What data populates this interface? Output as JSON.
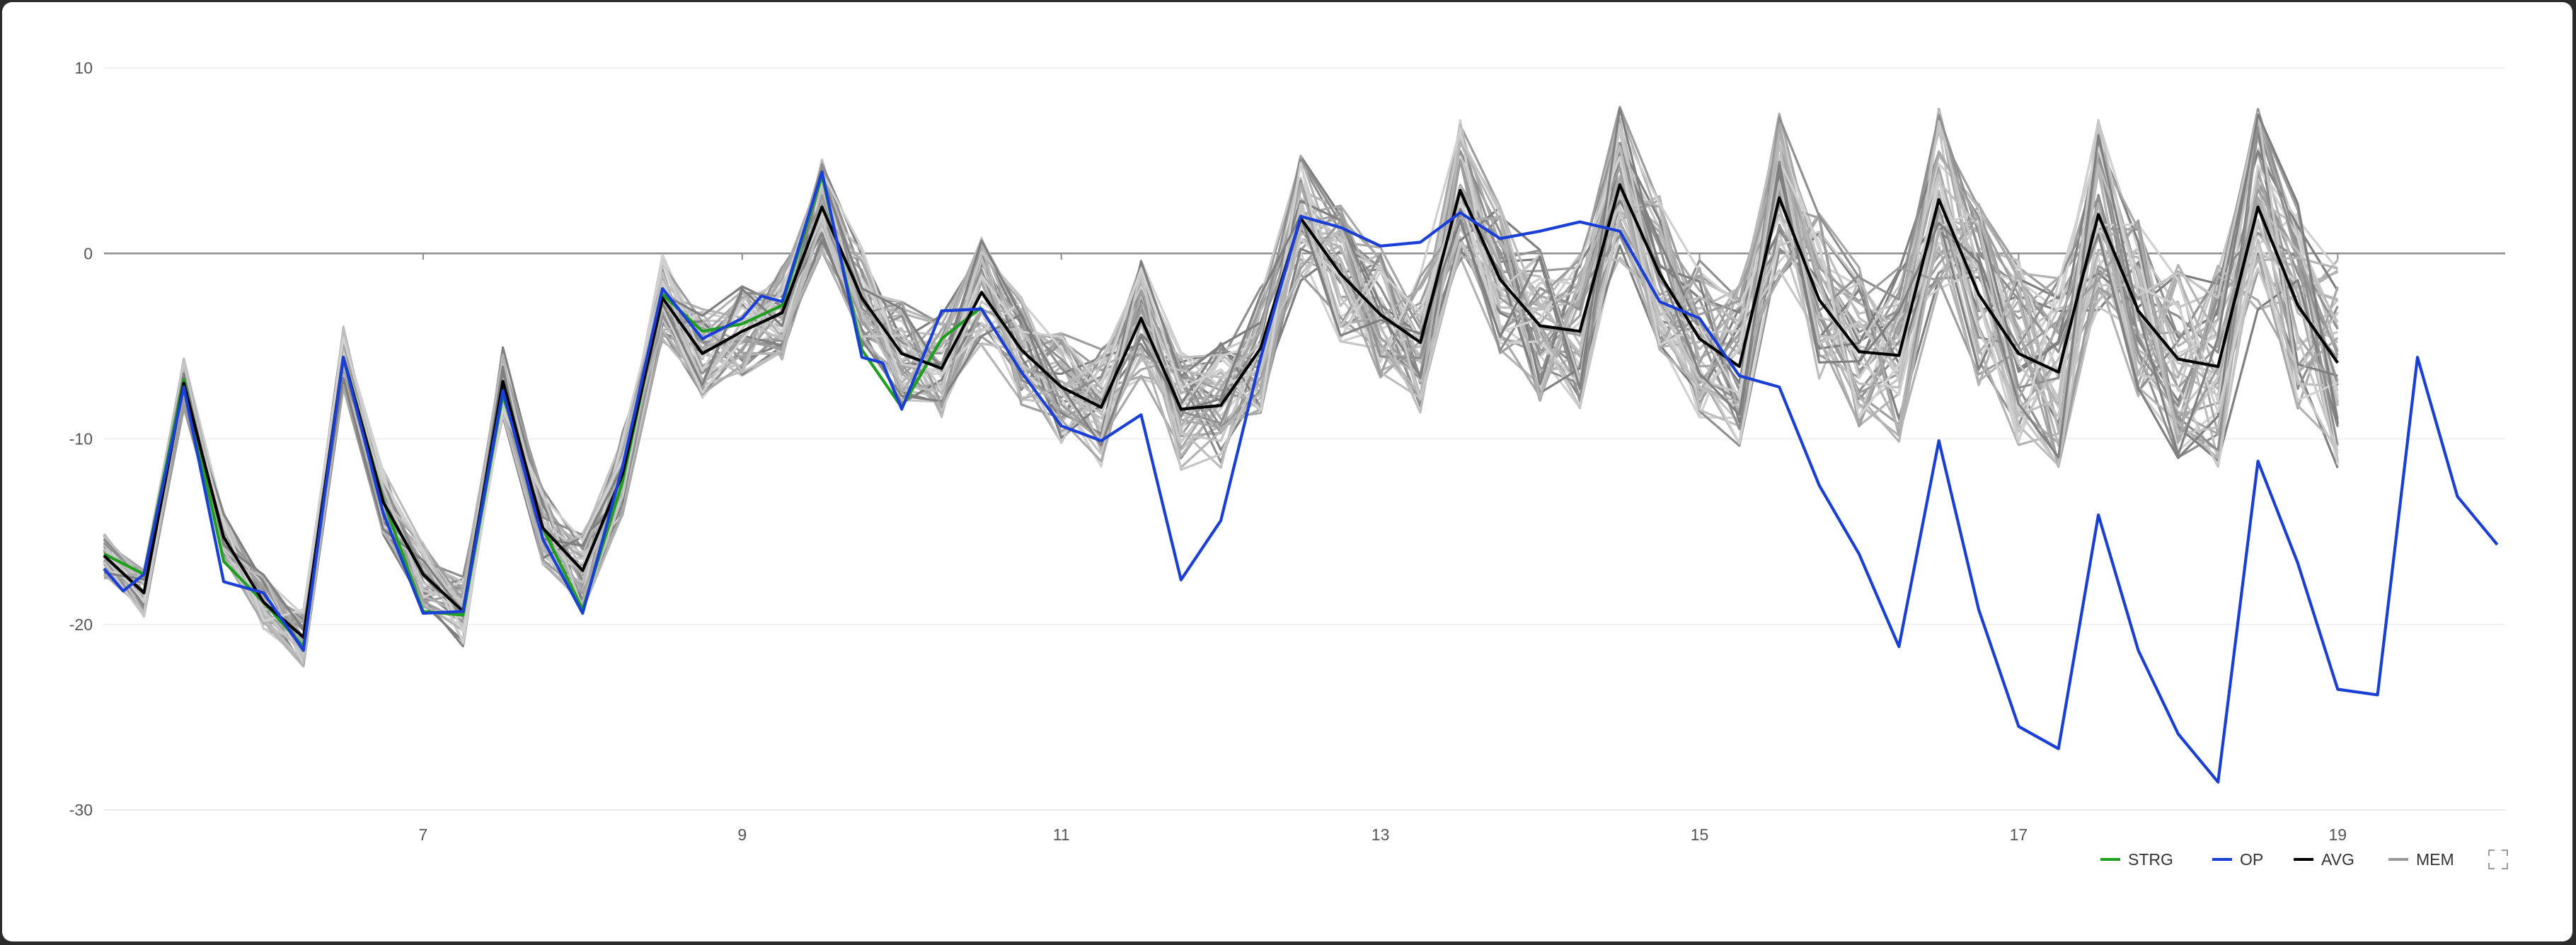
{
  "chart_data": {
    "type": "line",
    "title": "",
    "xlabel": "",
    "ylabel": "",
    "xlim": [
      5.0,
      20.05
    ],
    "ylim": [
      -30,
      10
    ],
    "x_ticks": [
      7,
      9,
      11,
      13,
      15,
      17,
      19
    ],
    "y_ticks": [
      10,
      0,
      -10,
      -20,
      -30
    ],
    "grid": "horizontal",
    "zero_line": true,
    "legend_position": "bottom-right",
    "colors": {
      "STRG": "#1f9e1f",
      "OP": "#1a3fd6",
      "AVG": "#000000",
      "MEM": "#999999"
    },
    "legend": [
      "STRG",
      "OP",
      "AVG",
      "MEM"
    ],
    "legend_icons": [
      "line-swatch",
      "line-swatch",
      "line-swatch",
      "line-swatch"
    ],
    "fullscreen_icon": "expand-icon",
    "series": [
      {
        "name": "STRG",
        "x": [
          5.0,
          5.25,
          5.5,
          5.75,
          6.0,
          6.25,
          6.5,
          6.75,
          7.0,
          7.25,
          7.5,
          7.75,
          8.0,
          8.25,
          8.5,
          8.75,
          9.0,
          9.25,
          9.5,
          9.75,
          10.0,
          10.25,
          10.5
        ],
        "y": [
          -16.2,
          -17.3,
          -6.8,
          -16.6,
          -18.8,
          -21.2,
          -5.6,
          -13.3,
          -19.3,
          -19.5,
          -7.6,
          -14.8,
          -19.2,
          -12.3,
          -2.2,
          -4.2,
          -3.8,
          -2.8,
          4.2,
          -5.2,
          -8.3,
          -4.6,
          -2.9
        ]
      },
      {
        "name": "OP",
        "x": [
          5.0,
          5.12,
          5.25,
          5.5,
          5.75,
          6.0,
          6.25,
          6.5,
          6.75,
          7.0,
          7.25,
          7.5,
          7.75,
          8.0,
          8.25,
          8.5,
          8.75,
          9.0,
          9.12,
          9.25,
          9.5,
          9.75,
          9.88,
          10.0,
          10.25,
          10.5,
          10.75,
          11.0,
          11.25,
          11.5,
          11.75,
          12.0,
          12.25,
          12.5,
          12.75,
          13.0,
          13.25,
          13.5,
          13.75,
          14.0,
          14.25,
          14.5,
          14.75,
          15.0,
          15.25,
          15.5,
          15.75,
          16.0,
          16.25,
          16.5,
          16.75,
          17.0,
          17.25,
          17.5,
          17.75,
          18.0,
          18.25,
          18.5,
          18.75,
          19.0,
          19.25,
          19.5,
          19.75,
          20.0
        ],
        "y": [
          -17.0,
          -18.2,
          -17.3,
          -7.2,
          -17.7,
          -18.3,
          -21.4,
          -5.6,
          -14.0,
          -19.4,
          -19.3,
          -7.4,
          -15.4,
          -19.4,
          -11.5,
          -1.9,
          -4.6,
          -3.5,
          -2.3,
          -2.6,
          4.4,
          -5.6,
          -5.9,
          -8.4,
          -3.1,
          -3.0,
          -6.4,
          -9.3,
          -10.1,
          -8.7,
          -17.6,
          -14.4,
          -5.6,
          2.0,
          1.4,
          0.4,
          0.6,
          2.2,
          0.8,
          1.2,
          1.7,
          1.2,
          -2.6,
          -3.5,
          -6.6,
          -7.2,
          -12.5,
          -16.2,
          -21.2,
          -10.1,
          -19.2,
          -25.5,
          -26.7,
          -14.1,
          -21.4,
          -25.9,
          -28.5,
          -11.2,
          -16.7,
          -23.5,
          -23.8,
          -5.6,
          -13.1,
          -15.7
        ]
      },
      {
        "name": "AVG",
        "x": [
          5.0,
          5.25,
          5.5,
          5.75,
          6.0,
          6.25,
          6.5,
          6.75,
          7.0,
          7.25,
          7.5,
          7.75,
          8.0,
          8.25,
          8.5,
          8.75,
          9.0,
          9.25,
          9.5,
          9.75,
          10.0,
          10.25,
          10.5,
          10.75,
          11.0,
          11.25,
          11.5,
          11.75,
          12.0,
          12.25,
          12.5,
          12.75,
          13.0,
          13.25,
          13.5,
          13.75,
          14.0,
          14.25,
          14.5,
          14.75,
          15.0,
          15.25,
          15.5,
          15.75,
          16.0,
          16.25,
          16.5,
          16.75,
          17.0,
          17.25,
          17.5,
          17.75,
          18.0,
          18.25,
          18.5,
          18.75,
          19.0
        ],
        "y": [
          -16.3,
          -18.3,
          -7.0,
          -15.3,
          -18.8,
          -20.7,
          -5.6,
          -13.4,
          -17.3,
          -19.3,
          -6.9,
          -14.8,
          -17.1,
          -11.9,
          -2.4,
          -5.4,
          -4.2,
          -3.2,
          2.5,
          -2.4,
          -5.4,
          -6.2,
          -2.1,
          -5.2,
          -7.2,
          -8.3,
          -3.5,
          -8.4,
          -8.2,
          -5.1,
          1.9,
          -1.1,
          -3.3,
          -4.8,
          3.4,
          -1.4,
          -3.9,
          -4.2,
          3.7,
          -1.1,
          -4.6,
          -6.1,
          3.0,
          -2.5,
          -5.3,
          -5.5,
          2.9,
          -2.2,
          -5.4,
          -6.4,
          2.1,
          -3.1,
          -5.7,
          -6.1,
          2.5,
          -2.8,
          -5.9
        ]
      }
    ]
  }
}
